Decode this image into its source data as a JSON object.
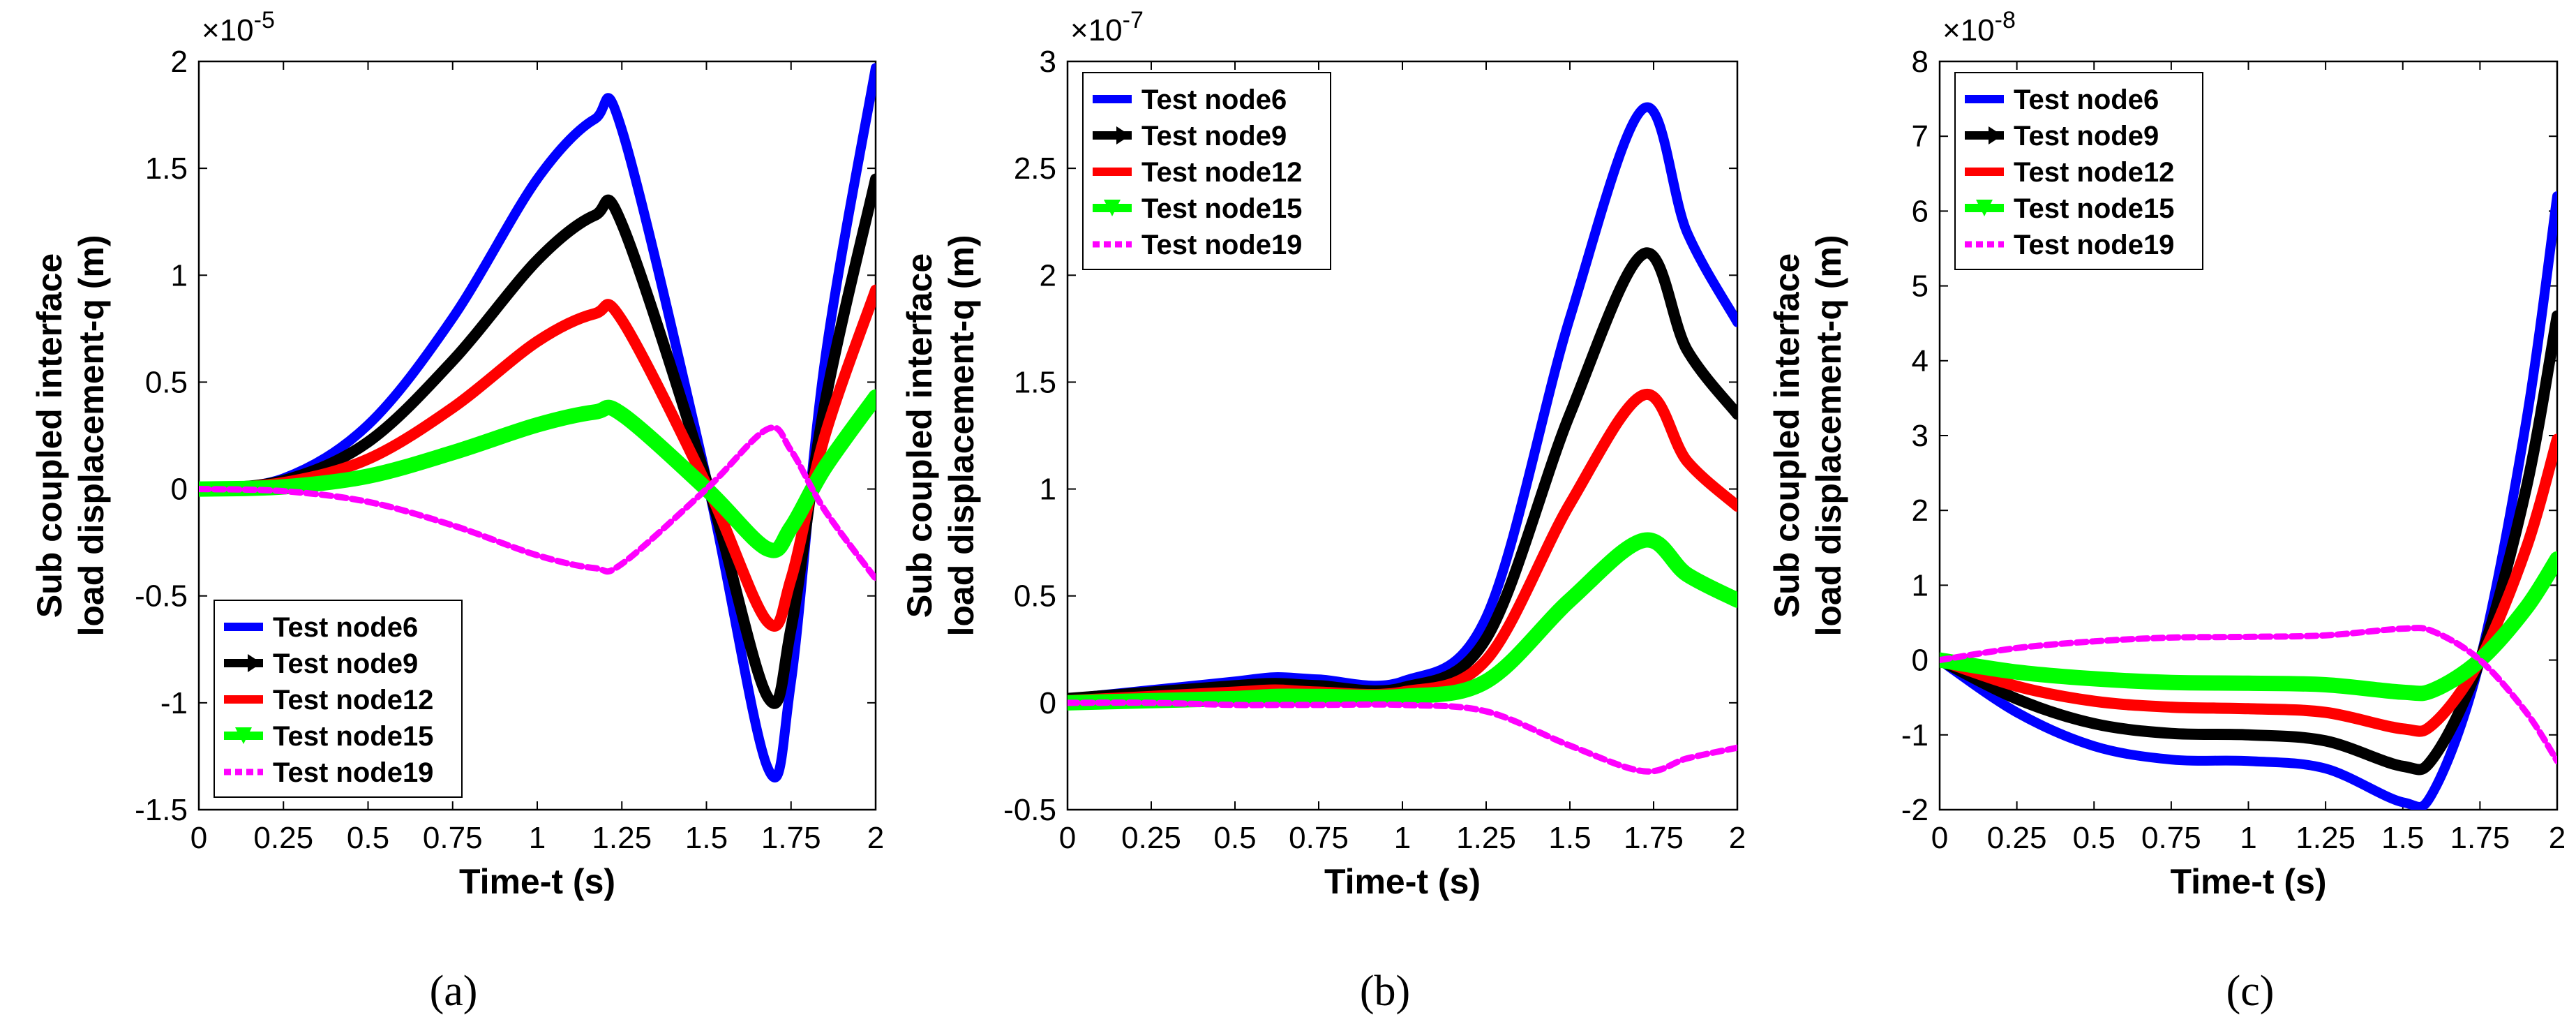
{
  "figure": {
    "panel_labels": [
      "(a)",
      "(b)",
      "(c)"
    ]
  },
  "colors": {
    "Test node6": "#0000ff",
    "Test node9": "#000000",
    "Test node12": "#ff0000",
    "Test node15": "#00ff00",
    "Test node19": "#ff00ff"
  },
  "chart_data": [
    {
      "type": "line",
      "panel": "(a)",
      "xlabel": "Time-t (s)",
      "ylabel_line1": "Sub coupled interface",
      "ylabel_line2": "load displacement-q (m)",
      "exponent": "×10",
      "exponent_power": "-5",
      "xlim": [
        0,
        2
      ],
      "ylim": [
        -1.5,
        2
      ],
      "xticks": [
        0,
        0.25,
        0.5,
        0.75,
        1,
        1.25,
        1.5,
        1.75,
        2
      ],
      "xtick_labels": [
        "0",
        "0.25",
        "0.5",
        "0.75",
        "1",
        "1.25",
        "1.5",
        "1.75",
        "2"
      ],
      "yticks": [
        -1.5,
        -1,
        -0.5,
        0,
        0.5,
        1,
        1.5,
        2
      ],
      "ytick_labels": [
        "-1.5",
        "-1",
        "-0.5",
        "0",
        "0.5",
        "1",
        "1.5",
        "2"
      ],
      "legend_position": "bottom-left",
      "x": [
        0,
        0.25,
        0.5,
        0.75,
        1,
        1.17,
        1.25,
        1.5,
        1.68,
        1.75,
        1.85,
        2
      ],
      "series": [
        {
          "name": "Test node6",
          "values": [
            0,
            0.05,
            0.3,
            0.8,
            1.45,
            1.73,
            1.68,
            0.05,
            -1.3,
            -0.9,
            0.6,
            1.97
          ]
        },
        {
          "name": "Test node9",
          "values": [
            0,
            0.04,
            0.22,
            0.6,
            1.07,
            1.28,
            1.24,
            0.04,
            -0.97,
            -0.65,
            0.4,
            1.45
          ]
        },
        {
          "name": "Test node12",
          "values": [
            0,
            0.03,
            0.14,
            0.38,
            0.69,
            0.82,
            0.79,
            0.02,
            -0.62,
            -0.42,
            0.25,
            0.93
          ]
        },
        {
          "name": "Test node15",
          "values": [
            0,
            0.01,
            0.06,
            0.17,
            0.3,
            0.36,
            0.35,
            0.0,
            -0.28,
            -0.18,
            0.1,
            0.43
          ]
        },
        {
          "name": "Test node19",
          "values": [
            0,
            -0.01,
            -0.06,
            -0.17,
            -0.31,
            -0.37,
            -0.35,
            0.0,
            0.28,
            0.18,
            -0.1,
            -0.42
          ]
        }
      ]
    },
    {
      "type": "line",
      "panel": "(b)",
      "xlabel": "Time-t (s)",
      "ylabel_line1": "Sub coupled interface",
      "ylabel_line2": "load displacement-q (m)",
      "exponent": "×10",
      "exponent_power": "-7",
      "xlim": [
        0,
        2
      ],
      "ylim": [
        -0.5,
        3
      ],
      "xticks": [
        0,
        0.25,
        0.5,
        0.75,
        1,
        1.25,
        1.5,
        1.75,
        2
      ],
      "xtick_labels": [
        "0",
        "0.25",
        "0.5",
        "0.75",
        "1",
        "1.25",
        "1.5",
        "1.75",
        "2"
      ],
      "yticks": [
        -0.5,
        0,
        0.5,
        1,
        1.5,
        2,
        2.5,
        3
      ],
      "ytick_labels": [
        "-0.5",
        "0",
        "0.5",
        "1",
        "1.5",
        "2",
        "2.5",
        "3"
      ],
      "legend_position": "top-left",
      "x": [
        0,
        0.25,
        0.5,
        0.62,
        0.75,
        1,
        1.25,
        1.5,
        1.72,
        1.85,
        2
      ],
      "series": [
        {
          "name": "Test node6",
          "values": [
            0.02,
            0.06,
            0.1,
            0.12,
            0.11,
            0.1,
            0.4,
            1.8,
            2.78,
            2.2,
            1.78
          ]
        },
        {
          "name": "Test node9",
          "values": [
            0.02,
            0.05,
            0.08,
            0.09,
            0.08,
            0.07,
            0.3,
            1.35,
            2.1,
            1.65,
            1.35
          ]
        },
        {
          "name": "Test node12",
          "values": [
            0.01,
            0.03,
            0.05,
            0.06,
            0.05,
            0.05,
            0.2,
            0.93,
            1.44,
            1.13,
            0.92
          ]
        },
        {
          "name": "Test node15",
          "values": [
            0.0,
            0.01,
            0.02,
            0.03,
            0.03,
            0.03,
            0.1,
            0.48,
            0.76,
            0.6,
            0.48
          ]
        },
        {
          "name": "Test node19",
          "values": [
            0.0,
            0.0,
            -0.01,
            -0.01,
            -0.01,
            -0.01,
            -0.04,
            -0.2,
            -0.32,
            -0.26,
            -0.21
          ]
        }
      ]
    },
    {
      "type": "line",
      "panel": "(c)",
      "xlabel": "Time-t (s)",
      "ylabel_line1": "Sub coupled interface",
      "ylabel_line2": "load displacement-q (m)",
      "exponent": "×10",
      "exponent_power": "-8",
      "xlim": [
        0,
        2
      ],
      "ylim": [
        -2,
        8
      ],
      "xticks": [
        0,
        0.25,
        0.5,
        0.75,
        1,
        1.25,
        1.5,
        1.75,
        2
      ],
      "xtick_labels": [
        "0",
        "0.25",
        "0.5",
        "0.75",
        "1",
        "1.25",
        "1.5",
        "1.75",
        "2"
      ],
      "yticks": [
        -2,
        -1,
        0,
        1,
        2,
        3,
        4,
        5,
        6,
        7,
        8
      ],
      "ytick_labels": [
        "-2",
        "-1",
        "0",
        "1",
        "2",
        "3",
        "4",
        "5",
        "6",
        "7",
        "8"
      ],
      "legend_position": "top-left",
      "x": [
        0,
        0.25,
        0.5,
        0.75,
        1,
        1.25,
        1.5,
        1.6,
        1.75,
        1.9,
        2
      ],
      "series": [
        {
          "name": "Test node6",
          "values": [
            0,
            -0.7,
            -1.15,
            -1.33,
            -1.35,
            -1.45,
            -1.9,
            -1.75,
            0.0,
            3.2,
            6.2
          ]
        },
        {
          "name": "Test node9",
          "values": [
            0,
            -0.52,
            -0.85,
            -0.98,
            -1.0,
            -1.08,
            -1.42,
            -1.3,
            0.0,
            2.3,
            4.6
          ]
        },
        {
          "name": "Test node12",
          "values": [
            0,
            -0.35,
            -0.55,
            -0.63,
            -0.65,
            -0.7,
            -0.92,
            -0.85,
            0.0,
            1.5,
            2.95
          ]
        },
        {
          "name": "Test node15",
          "values": [
            0,
            -0.16,
            -0.25,
            -0.3,
            -0.31,
            -0.33,
            -0.43,
            -0.4,
            0.0,
            0.7,
            1.35
          ]
        },
        {
          "name": "Test node19",
          "values": [
            0,
            0.16,
            0.25,
            0.3,
            0.31,
            0.33,
            0.42,
            0.38,
            0.0,
            -0.7,
            -1.35
          ]
        }
      ]
    }
  ]
}
